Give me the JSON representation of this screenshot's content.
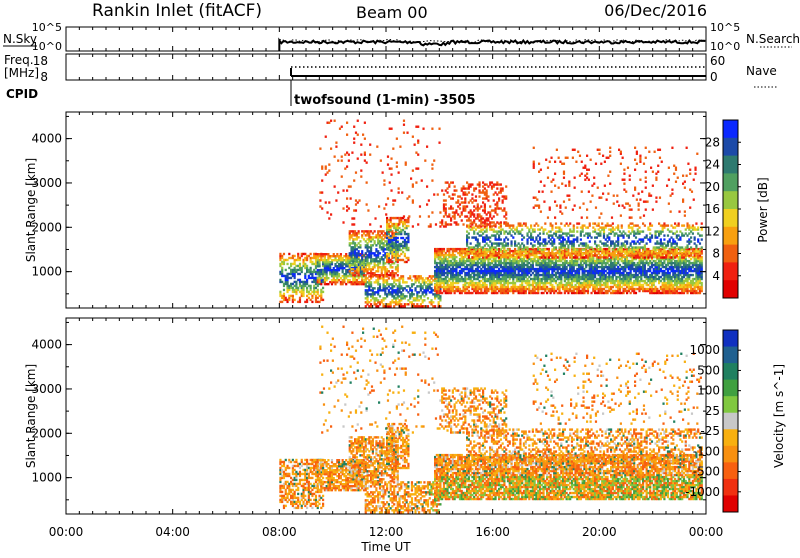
{
  "header": {
    "left_title": "Rankin Inlet (fitACF)",
    "center_title": "Beam 00",
    "right_title": "06/Dec/2016"
  },
  "nsky_panel": {
    "left_label": "N.Sky",
    "left_ticks": [
      "10^5",
      "10^0"
    ],
    "right_ticks": [
      "10^5",
      "10^0"
    ],
    "right_label": "N.Search"
  },
  "freq_panel": {
    "left_label_1": "Freq.",
    "left_label_2": "[MHz]",
    "left_ticks": [
      "18",
      "8"
    ],
    "right_ticks": [
      "60",
      "0"
    ],
    "right_label": "Nave"
  },
  "cpid": {
    "label": "CPID",
    "annotation": "twofsound (1-min) -3505"
  },
  "time_axis": {
    "ticks": [
      "00:00",
      "04:00",
      "08:00",
      "12:00",
      "16:00",
      "20:00",
      "00:00"
    ],
    "title": "Time UT"
  },
  "chart_data": [
    {
      "type": "heatmap",
      "title": "",
      "xlabel": "Time UT",
      "ylabel": "Slant Range [km]",
      "y_ticks": [
        "1000",
        "2000",
        "3000",
        "4000"
      ],
      "xlim_hours": [
        0,
        24
      ],
      "ylim_km": [
        180,
        4600
      ],
      "data_start_hour": 8,
      "colorbar": {
        "label": "Power [dB]",
        "ticks": [
          "4",
          "8",
          "12",
          "16",
          "20",
          "24",
          "28"
        ],
        "colors": [
          "#0a28ff",
          "#1c4aa8",
          "#2e7a70",
          "#50a060",
          "#98c840",
          "#f0d020",
          "#f8a010",
          "#f06010",
          "#f02010",
          "#e00000"
        ]
      }
    },
    {
      "type": "heatmap",
      "title": "",
      "xlabel": "Time UT",
      "ylabel": "Slant Range [km]",
      "y_ticks": [
        "1000",
        "2000",
        "3000",
        "4000"
      ],
      "xlim_hours": [
        0,
        24
      ],
      "ylim_km": [
        180,
        4600
      ],
      "data_start_hour": 8,
      "colorbar": {
        "label": "Velocity [m s^-1]",
        "ticks": [
          "1000",
          "500",
          "100",
          "25",
          "-25",
          "-100",
          "-500",
          "-1000"
        ],
        "colors": [
          "#1030c0",
          "#206090",
          "#208060",
          "#40a040",
          "#80c840",
          "#c8c8c8",
          "#f8b010",
          "#f89010",
          "#f86010",
          "#f03010",
          "#e00000"
        ]
      }
    }
  ]
}
